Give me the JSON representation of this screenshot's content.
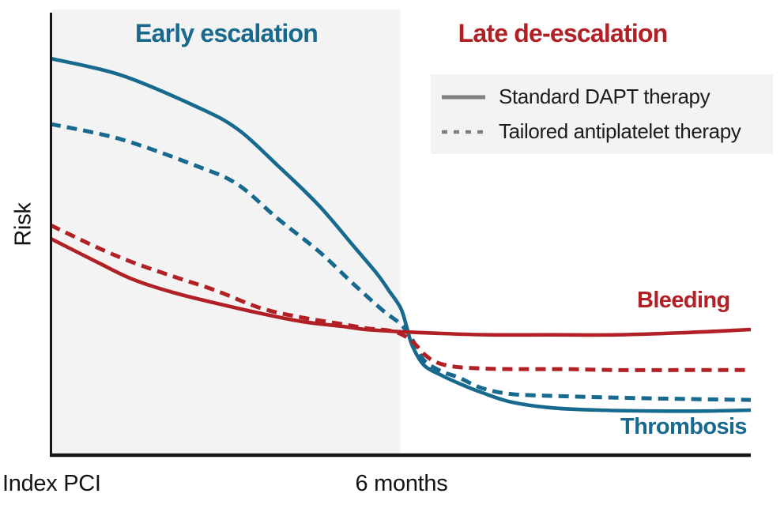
{
  "figure": {
    "phase_labels": {
      "early": "Early escalation",
      "late": "Late de-escalation"
    },
    "axis": {
      "y_label": "Risk",
      "x_tick_left": "Index PCI",
      "x_tick_mid": "6 months"
    },
    "legend": {
      "items": [
        {
          "label": "Standard DAPT therapy",
          "style": "solid"
        },
        {
          "label": "Tailored antiplatelet therapy",
          "style": "dashed"
        }
      ]
    },
    "curve_labels": {
      "bleeding": "Bleeding",
      "thrombosis": "Thrombosis"
    },
    "colors": {
      "thrombosis_teal": "#17698D",
      "bleeding_red": "#B02025",
      "shaded_region": "#F3F3F3",
      "legend_box": "#F3F3F3",
      "legend_line_gray": "#7F7F7F",
      "axis_black": "#151515",
      "text_dark": "#1C1C1C"
    }
  },
  "chart_data": {
    "type": "line",
    "title": "",
    "ylabel": "Risk",
    "xlabel": "",
    "x_unit": "months since index PCI",
    "x_tick_labels": [
      "Index PCI",
      "6 months"
    ],
    "x_tick_positions": [
      0,
      6
    ],
    "xlim": [
      0,
      12
    ],
    "ylim": [
      0,
      100
    ],
    "y_scale_note": "relative risk, unlabeled conceptual axis (0-100)",
    "grid": false,
    "legend_position": "upper right",
    "shaded_region_months": [
      0,
      6
    ],
    "annotations": [
      {
        "text": "Early escalation",
        "color": "#17698D",
        "region": "0-6 months"
      },
      {
        "text": "Late de-escalation",
        "color": "#B02025",
        "region": "6-12 months"
      },
      {
        "text": "Bleeding",
        "color": "#B02025",
        "near": [
          10.5,
          32
        ]
      },
      {
        "text": "Thrombosis",
        "color": "#17698D",
        "near": [
          10.5,
          6
        ]
      }
    ],
    "series": [
      {
        "id": "thrombosis-standard",
        "name": "Thrombosis — Standard DAPT therapy",
        "color": "#17698D",
        "dash": false,
        "points": [
          [
            0,
            89.0
          ],
          [
            1.2,
            85.3
          ],
          [
            2.5,
            78.2
          ],
          [
            3.2,
            73.2
          ],
          [
            3.9,
            64.9
          ],
          [
            4.6,
            56.0
          ],
          [
            5.2,
            46.8
          ],
          [
            5.6,
            40.6
          ],
          [
            5.8,
            36.9
          ],
          [
            6.0,
            33.0
          ],
          [
            6.1,
            28.9
          ],
          [
            6.2,
            24.5
          ],
          [
            6.4,
            20.2
          ],
          [
            6.7,
            17.9
          ],
          [
            7.0,
            16.1
          ],
          [
            7.4,
            14.0
          ],
          [
            7.9,
            11.9
          ],
          [
            8.6,
            10.6
          ],
          [
            9.4,
            10.1
          ],
          [
            10.4,
            9.9
          ],
          [
            11.2,
            9.9
          ],
          [
            12,
            10.1
          ]
        ]
      },
      {
        "id": "thrombosis-tailored",
        "name": "Thrombosis — Tailored antiplatelet therapy",
        "color": "#17698D",
        "dash": true,
        "points": [
          [
            0,
            74.3
          ],
          [
            1.2,
            70.9
          ],
          [
            2.5,
            64.9
          ],
          [
            3.2,
            60.8
          ],
          [
            3.9,
            53.0
          ],
          [
            4.6,
            45.7
          ],
          [
            5.2,
            38.3
          ],
          [
            5.7,
            32.4
          ],
          [
            6.0,
            29.4
          ],
          [
            6.2,
            25.9
          ],
          [
            6.4,
            21.3
          ],
          [
            6.7,
            18.8
          ],
          [
            7.0,
            17.4
          ],
          [
            7.4,
            15.0
          ],
          [
            7.9,
            13.7
          ],
          [
            8.6,
            13.3
          ],
          [
            9.7,
            12.9
          ],
          [
            10.9,
            12.6
          ],
          [
            12,
            12.4
          ]
        ]
      },
      {
        "id": "bleeding-tailored",
        "name": "Bleeding — Tailored antiplatelet therapy",
        "color": "#B02025",
        "dash": true,
        "points": [
          [
            0,
            51.6
          ],
          [
            0.8,
            46.6
          ],
          [
            1.4,
            43.3
          ],
          [
            2.1,
            40.1
          ],
          [
            2.8,
            37.1
          ],
          [
            3.6,
            33.0
          ],
          [
            4.3,
            30.9
          ],
          [
            5.0,
            29.4
          ],
          [
            5.4,
            28.5
          ],
          [
            5.9,
            27.7
          ],
          [
            6.2,
            25.5
          ],
          [
            6.4,
            22.7
          ],
          [
            6.6,
            20.9
          ],
          [
            6.9,
            19.9
          ],
          [
            7.3,
            19.5
          ],
          [
            7.9,
            19.3
          ],
          [
            8.8,
            19.3
          ],
          [
            9.7,
            19.1
          ],
          [
            10.9,
            19.1
          ],
          [
            12,
            19.1
          ]
        ]
      },
      {
        "id": "bleeding-standard",
        "name": "Bleeding — Standard DAPT therapy",
        "color": "#B02025",
        "dash": false,
        "points": [
          [
            0,
            48.6
          ],
          [
            0.8,
            43.3
          ],
          [
            1.4,
            39.5
          ],
          [
            2.1,
            36.5
          ],
          [
            2.8,
            34.2
          ],
          [
            3.5,
            32.1
          ],
          [
            4.3,
            30.0
          ],
          [
            5.0,
            28.9
          ],
          [
            5.4,
            28.2
          ],
          [
            6.0,
            27.7
          ],
          [
            6.7,
            27.3
          ],
          [
            7.5,
            27.0
          ],
          [
            8.6,
            27.0
          ],
          [
            9.7,
            27.0
          ],
          [
            10.9,
            27.5
          ],
          [
            12,
            28.2
          ]
        ]
      }
    ]
  }
}
